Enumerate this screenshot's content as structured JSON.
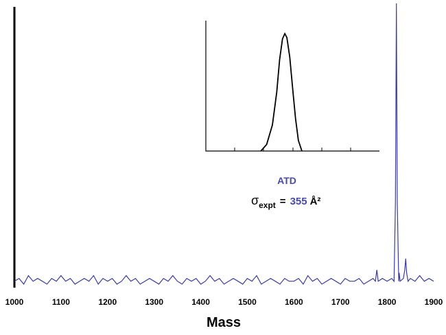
{
  "chart_data": [
    {
      "type": "line",
      "x_label": "Mass",
      "xlim": [
        1000,
        1900
      ],
      "xticks": [
        1000,
        1100,
        1200,
        1300,
        1400,
        1500,
        1600,
        1700,
        1800,
        1900
      ],
      "ylim": [
        0,
        100
      ],
      "series": [
        {
          "color": "#3b3b9c",
          "x": [
            1000,
            1010,
            1020,
            1030,
            1040,
            1050,
            1060,
            1070,
            1080,
            1090,
            1100,
            1110,
            1120,
            1130,
            1140,
            1150,
            1160,
            1170,
            1180,
            1190,
            1200,
            1210,
            1220,
            1230,
            1240,
            1250,
            1260,
            1270,
            1280,
            1290,
            1300,
            1310,
            1320,
            1330,
            1340,
            1350,
            1360,
            1370,
            1380,
            1390,
            1400,
            1410,
            1420,
            1430,
            1440,
            1450,
            1460,
            1470,
            1480,
            1490,
            1500,
            1510,
            1520,
            1530,
            1540,
            1550,
            1560,
            1570,
            1580,
            1590,
            1600,
            1610,
            1620,
            1630,
            1640,
            1650,
            1660,
            1670,
            1680,
            1690,
            1700,
            1710,
            1720,
            1730,
            1740,
            1750,
            1760,
            1770,
            1775,
            1778,
            1781,
            1790,
            1800,
            1810,
            1815,
            1818,
            1820,
            1822,
            1825,
            1826,
            1828,
            1835,
            1838,
            1840,
            1842,
            1845,
            1850,
            1860,
            1870,
            1880,
            1890,
            1900
          ],
          "values": [
            2,
            3,
            1,
            4,
            2,
            3,
            2,
            1,
            3,
            2,
            4,
            2,
            3,
            1,
            2,
            3,
            2,
            4,
            1,
            3,
            2,
            3,
            1,
            2,
            4,
            2,
            3,
            1,
            2,
            3,
            2,
            1,
            3,
            2,
            4,
            2,
            1,
            3,
            2,
            3,
            1,
            2,
            4,
            2,
            3,
            1,
            2,
            3,
            2,
            1,
            3,
            2,
            4,
            1,
            2,
            3,
            2,
            1,
            3,
            2,
            2,
            3,
            1,
            4,
            2,
            3,
            1,
            2,
            3,
            2,
            1,
            3,
            2,
            2,
            3,
            1,
            2,
            3,
            2,
            6,
            2,
            3,
            2,
            3,
            2,
            30,
            100,
            30,
            2,
            5,
            2,
            3,
            6,
            10,
            5,
            2,
            3,
            2,
            4,
            2,
            3,
            2
          ]
        }
      ]
    },
    {
      "type": "line",
      "title": "ATD",
      "annotation": {
        "symbol": "σ",
        "subscript": "expt",
        "equals": "=",
        "value": 355,
        "unit": "Å²"
      },
      "xlim": [
        0,
        6
      ],
      "ylim": [
        0,
        100
      ],
      "series": [
        {
          "color": "#000000",
          "x": [
            1.9,
            2.1,
            2.3,
            2.45,
            2.55,
            2.65,
            2.73,
            2.8,
            2.9,
            3.0,
            3.1,
            3.2,
            3.32
          ],
          "values": [
            0,
            5,
            20,
            45,
            70,
            86,
            90,
            87,
            72,
            48,
            25,
            8,
            0
          ]
        }
      ]
    }
  ]
}
